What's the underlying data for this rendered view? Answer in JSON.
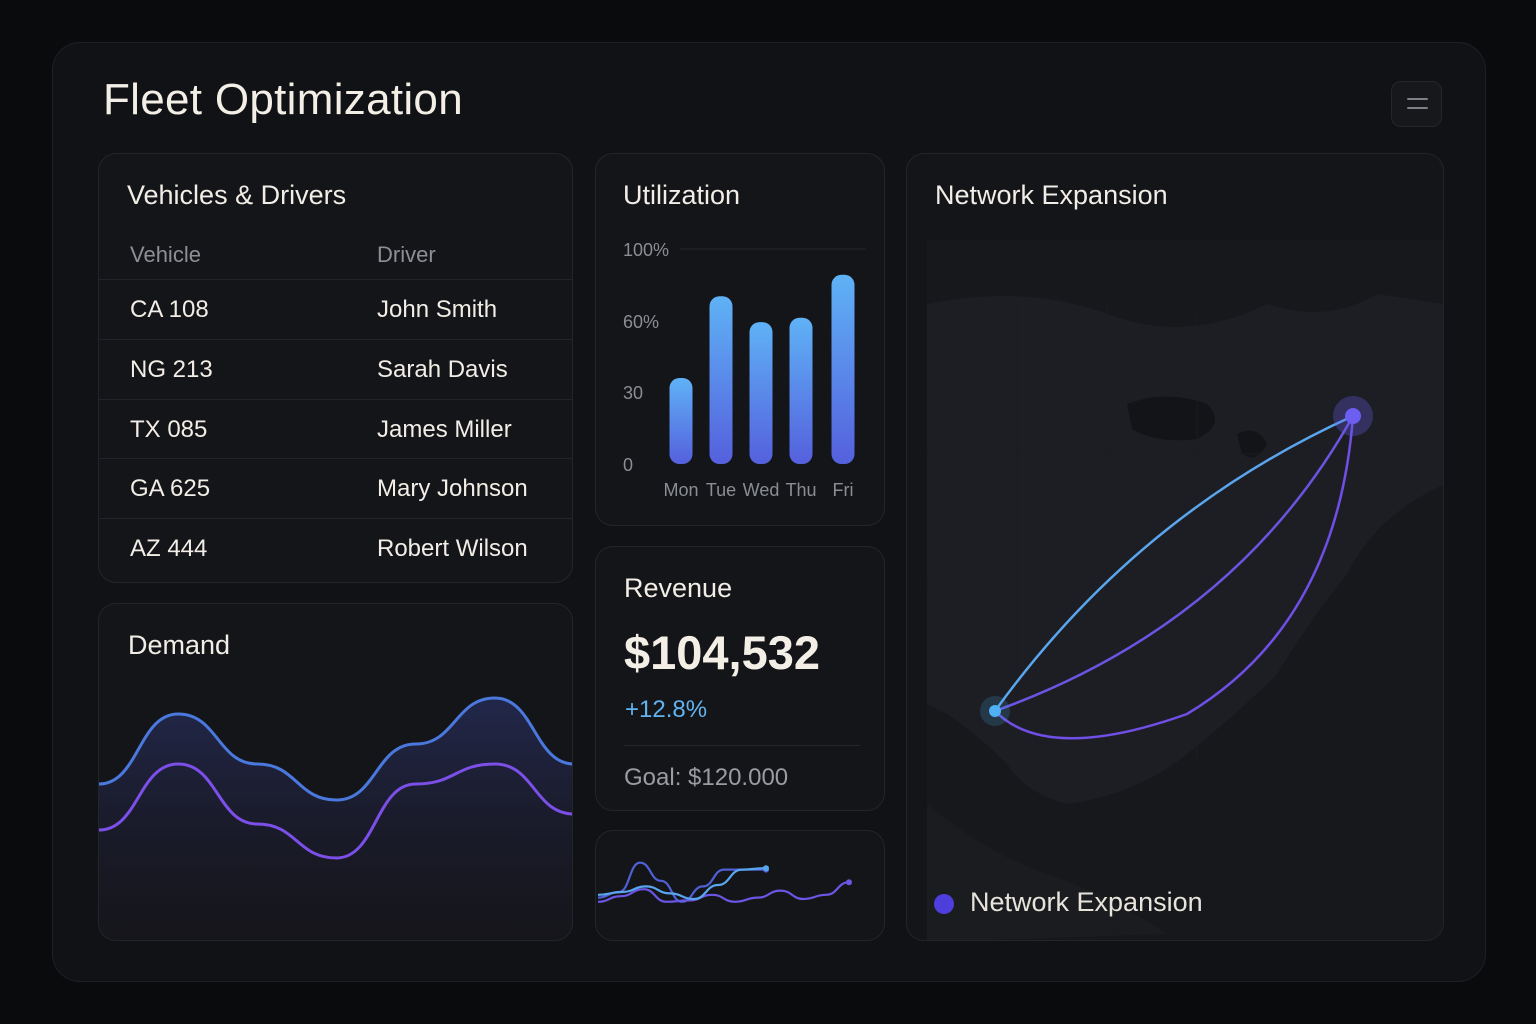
{
  "header": {
    "title": "Fleet Optimization",
    "menu_icon": "hamburger-menu-icon"
  },
  "vehicles": {
    "title": "Vehicles & Drivers",
    "columns": [
      "Vehicle",
      "Driver"
    ],
    "rows": [
      {
        "vehicle": "CA 108",
        "driver": "John Smith"
      },
      {
        "vehicle": "NG 213",
        "driver": "Sarah Davis"
      },
      {
        "vehicle": "TX 085",
        "driver": "James Miller"
      },
      {
        "vehicle": "GA 625",
        "driver": "Mary Johnson"
      },
      {
        "vehicle": "AZ 444",
        "driver": "Robert Wilson"
      }
    ]
  },
  "utilization": {
    "title": "Utilization",
    "chart_data": {
      "type": "bar",
      "categories": [
        "Mon",
        "Tue",
        "Wed",
        "Thu",
        "Fri"
      ],
      "values": [
        40,
        78,
        66,
        68,
        88
      ],
      "y_ticks": [
        "100%",
        "60%",
        "30",
        "0"
      ],
      "ylim": [
        0,
        100
      ],
      "colors": {
        "top": "#5fb2f6",
        "bottom": "#5560dd"
      }
    }
  },
  "revenue": {
    "title": "Revenue",
    "value": "$104,532",
    "change": "+12.8%",
    "goal": "Goal: $120.000"
  },
  "sparkline": {
    "chart_data": {
      "type": "line",
      "series": [
        {
          "values": [
            6,
            10,
            31,
            18,
            3,
            14,
            26,
            26,
            26
          ],
          "markers": [
            8
          ],
          "color": "#4f5fd6"
        },
        {
          "values": [
            3,
            7,
            12,
            3,
            4,
            8,
            3,
            6,
            11,
            5,
            8,
            17
          ],
          "markers": [
            11
          ],
          "color": "#6b55e4"
        },
        {
          "values": [
            8,
            10,
            14,
            9,
            5,
            15,
            26,
            27
          ],
          "markers": [
            7
          ],
          "color": "#5aa6ee"
        }
      ]
    }
  },
  "demand": {
    "title": "Demand",
    "chart_data": {
      "type": "line",
      "series": [
        {
          "values": [
            0.45,
            0.8,
            0.55,
            0.37,
            0.65,
            0.88,
            0.55
          ],
          "color": "#4a78dd"
        },
        {
          "values": [
            0.22,
            0.55,
            0.25,
            0.08,
            0.45,
            0.55,
            0.3
          ],
          "color": "#7b4fe8"
        }
      ]
    }
  },
  "network": {
    "title": "Network Expansion",
    "legend_label": "Network Expansion",
    "legend_color": "#4c3fdc",
    "origin_color": "#4fb1f4",
    "dest_color": "#6b5ef0"
  }
}
